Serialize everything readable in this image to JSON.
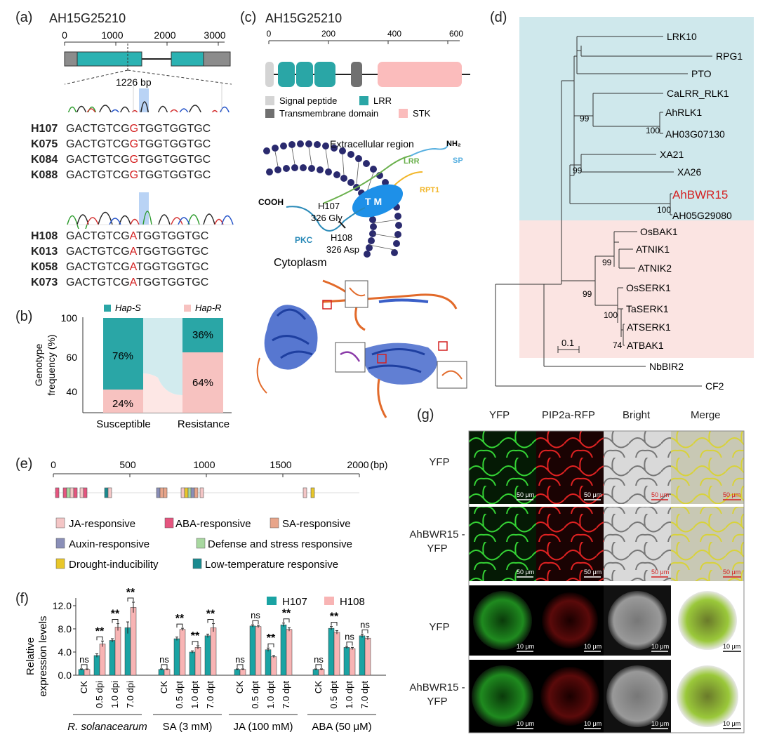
{
  "panel_a": {
    "label": "(a)",
    "gene": "AH15G25210",
    "ticks": [
      "0",
      "1000",
      "2000",
      "3000"
    ],
    "snp_pos": "1226 bp",
    "group1": [
      {
        "name": "H107",
        "pre": "GACTGTCG",
        "snp": "G",
        "post": "TGGTGGTGC"
      },
      {
        "name": "K075",
        "pre": "GACTGTCG",
        "snp": "G",
        "post": "TGGTGGTGC"
      },
      {
        "name": "K084",
        "pre": "GACTGTCG",
        "snp": "G",
        "post": "TGGTGGTGC"
      },
      {
        "name": "K088",
        "pre": "GACTGTCG",
        "snp": "G",
        "post": "TGGTGGTGC"
      }
    ],
    "group2": [
      {
        "name": "H108",
        "pre": "GACTGTCG",
        "snp": "A",
        "post": "TGGTGGTGC"
      },
      {
        "name": "K013",
        "pre": "GACTGTCG",
        "snp": "A",
        "post": "TGGTGGTGC"
      },
      {
        "name": "K058",
        "pre": "GACTGTCG",
        "snp": "A",
        "post": "TGGTGGTGC"
      },
      {
        "name": "K073",
        "pre": "GACTGTCG",
        "snp": "A",
        "post": "TGGTGGTGC"
      }
    ]
  },
  "panel_b": {
    "label": "(b)",
    "legend_s": "Hap-S",
    "legend_r": "Hap-R",
    "ylabel": "Genotype frequency (%)",
    "yticks": [
      "100",
      "60",
      "40"
    ],
    "categories": [
      "Susceptible",
      "Resistance"
    ],
    "s_values": [
      "76%",
      "36%"
    ],
    "r_values": [
      "24%",
      "64%"
    ]
  },
  "panel_c": {
    "label": "(c)",
    "gene": "AH15G25210",
    "ticks": [
      "0",
      "200",
      "400",
      "600"
    ],
    "legend": [
      "Signal peptide",
      "LRR",
      "Transmembrane domain",
      "STK"
    ],
    "extracellular": "Extracellular region",
    "nh2": "NH₂",
    "sp": "SP",
    "lrr": "LRR",
    "rpt1": "RPT1",
    "tm": "T M",
    "cooh": "COOH",
    "h107": "H107",
    "gly": "326 Gly",
    "h108": "H108",
    "asp": "326 Asp",
    "pkc": "PKC",
    "cytoplasm": "Cytoplasm"
  },
  "panel_d": {
    "label": "(d)",
    "taxa": [
      "LRK10",
      "RPG1",
      "PTO",
      "CaLRR_RLK1",
      "AhRLK1",
      "AH03G07130",
      "XA21",
      "XA26",
      "AhBWR15",
      "AH05G29080",
      "OsBAK1",
      "ATNIK1",
      "ATNIK2",
      "OsSERK1",
      "TaSERK1",
      "ATSERK1",
      "ATBAK1",
      "NbBIR2",
      "CF2"
    ],
    "bootstraps": [
      "99",
      "100",
      "99",
      "100",
      "99",
      "99",
      "100",
      "74"
    ],
    "scale": "0.1"
  },
  "panel_e": {
    "label": "(e)",
    "ticks": [
      "0",
      "500",
      "1000",
      "1500",
      "2000"
    ],
    "unit": "(bp)",
    "legend": [
      {
        "text": "JA-responsive",
        "color": "#f4c6c6"
      },
      {
        "text": "ABA-responsive",
        "color": "#e5557f"
      },
      {
        "text": "SA-responsive",
        "color": "#e8a58a"
      },
      {
        "text": "Auxin-responsive",
        "color": "#8a8fb8"
      },
      {
        "text": "Defense and stress responsive",
        "color": "#a8d8a0"
      },
      {
        "text": "Drought-inducibility",
        "color": "#e8c72a"
      },
      {
        "text": "Low-temperature responsive",
        "color": "#1b8a8f"
      }
    ]
  },
  "panel_f": {
    "label": "(f)",
    "ylabel": "Relative expression levels",
    "yticks": [
      "0.0",
      "4.0",
      "8.0",
      "12.0"
    ],
    "legend": [
      "H107",
      "H108"
    ],
    "groups": [
      {
        "name": "R. solanacearum",
        "cats": [
          "CK",
          "0.5 dpi",
          "1.0 dpi",
          "7.0 dpi"
        ]
      },
      {
        "name": "SA (3 mM)",
        "cats": [
          "CK",
          "0.5 dpt",
          "1.0 dpt",
          "7.0 dpt"
        ]
      },
      {
        "name": "JA (100 mM)",
        "cats": [
          "CK",
          "0.5 dpt",
          "1.0 dpt",
          "7.0 dpt"
        ]
      },
      {
        "name": "ABA (50 μM)",
        "cats": [
          "CK",
          "0.5 dpt",
          "1.0 dpt",
          "7.0 dpt"
        ]
      }
    ],
    "sig": [
      "ns",
      "**",
      "**",
      "**",
      "ns",
      "**",
      "**",
      "**",
      "ns",
      "ns",
      "**",
      "**",
      "ns",
      "**",
      "ns",
      "ns"
    ]
  },
  "chart_data": {
    "type": "bar",
    "categories": [
      "CK",
      "0.5 dpi",
      "1.0 dpi",
      "7.0 dpi",
      "CK",
      "0.5 dpt",
      "1.0 dpt",
      "7.0 dpt",
      "CK",
      "0.5 dpt",
      "1.0 dpt",
      "7.0 dpt",
      "CK",
      "0.5 dpt",
      "1.0 dpt",
      "7.0 dpt"
    ],
    "series": [
      {
        "name": "H107",
        "values": [
          1.0,
          3.4,
          6.0,
          8.2,
          1.0,
          6.3,
          4.0,
          6.8,
          1.0,
          8.5,
          4.4,
          8.7,
          1.0,
          8.1,
          4.8,
          6.8
        ]
      },
      {
        "name": "H108",
        "values": [
          1.0,
          5.4,
          8.3,
          11.7,
          1.0,
          7.9,
          4.8,
          8.2,
          1.0,
          8.4,
          3.2,
          7.9,
          1.0,
          7.4,
          4.6,
          6.4
        ]
      }
    ],
    "errors": [
      [
        0.1,
        0.3,
        0.3,
        1.0,
        0.1,
        0.3,
        0.2,
        0.3,
        0.1,
        0.2,
        0.3,
        0.3,
        0.1,
        0.3,
        0.2,
        0.3
      ],
      [
        0.1,
        0.5,
        0.6,
        0.9,
        0.1,
        0.2,
        0.3,
        0.7,
        0.1,
        0.2,
        0.2,
        0.3,
        0.1,
        0.3,
        0.2,
        0.3
      ]
    ],
    "ylabel": "Relative expression levels",
    "ylim": [
      0,
      13
    ]
  },
  "panel_g": {
    "label": "(g)",
    "columns": [
      "YFP",
      "PIP2a-RFP",
      "Bright",
      "Merge"
    ],
    "rows": [
      "YFP",
      "AhBWR15 -YFP",
      "YFP",
      "AhBWR15 -YFP"
    ],
    "scale_top": "50 μm",
    "scale_bottom": "10 μm"
  }
}
